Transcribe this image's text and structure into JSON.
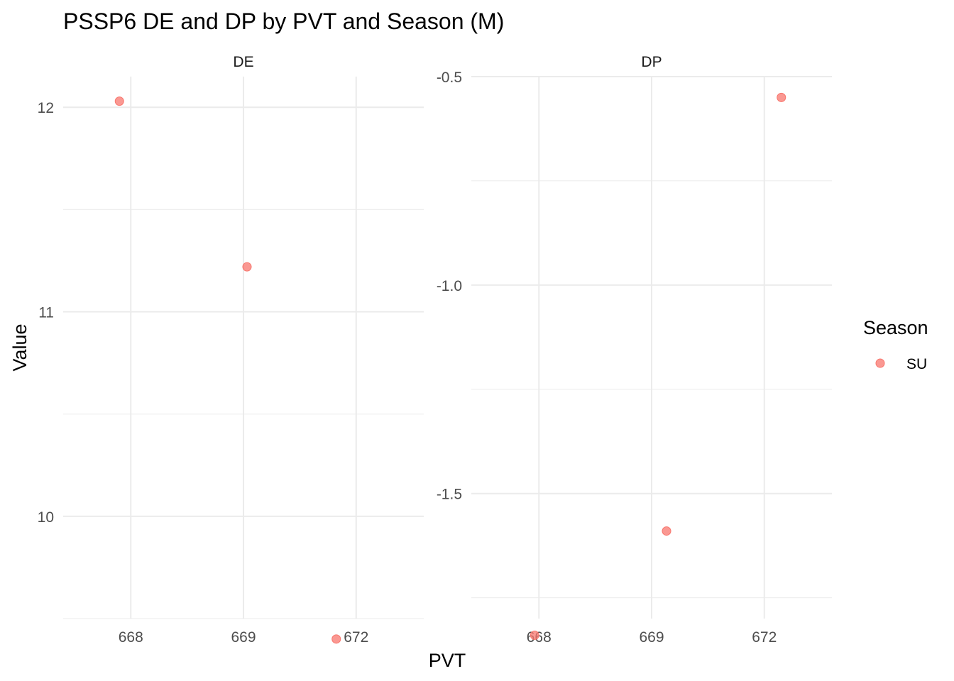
{
  "chart_data": {
    "type": "scatter",
    "title": "PSSP6 DE and DP by PVT and Season (M)",
    "xlabel": "PVT",
    "ylabel": "Value",
    "x_categories": [
      "668",
      "669",
      "672"
    ],
    "legend": {
      "title": "Season",
      "placement": "right",
      "entries": [
        {
          "name": "SU",
          "color": "#F8766D"
        }
      ]
    },
    "grid": true,
    "facets": [
      {
        "name": "DE",
        "ylim": [
          9.5,
          12.15
        ],
        "y_ticks": [
          10,
          11,
          12
        ],
        "y_tick_labels": [
          "10",
          "11",
          "12"
        ],
        "points": [
          {
            "x": "668",
            "y": 12.03,
            "series": "SU"
          },
          {
            "x": "669",
            "y": 11.22,
            "series": "SU"
          },
          {
            "x": "672",
            "y": 9.4,
            "series": "SU"
          }
        ]
      },
      {
        "name": "DP",
        "ylim": [
          -1.8,
          -0.5
        ],
        "y_ticks": [
          -0.5,
          -1.0,
          -1.5
        ],
        "y_tick_labels": [
          "-0.5",
          "-1.0",
          "-1.5"
        ],
        "points": [
          {
            "x": "668",
            "y": -1.84,
            "series": "SU"
          },
          {
            "x": "669",
            "y": -1.59,
            "series": "SU"
          },
          {
            "x": "672",
            "y": -0.55,
            "series": "SU"
          }
        ]
      }
    ]
  }
}
